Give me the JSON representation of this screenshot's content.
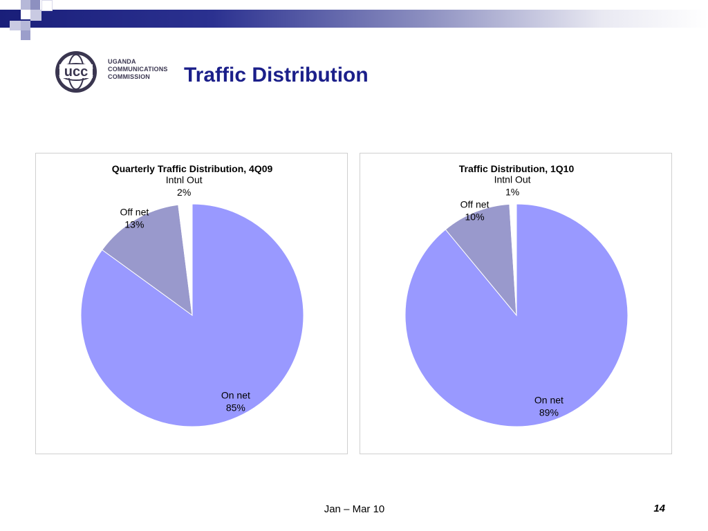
{
  "slide": {
    "title": "Traffic Distribution",
    "logo": {
      "line1": "UGANDA",
      "line2": "COMMUNICATIONS",
      "line3": "COMMISSION",
      "mark": "ucc"
    },
    "footer": "Jan – Mar 10",
    "page_number": "14"
  },
  "colors": {
    "on_net": "#9999ff",
    "off_net": "#9999cc",
    "intnl_out": "#ffffff",
    "title": "#1b1f8a"
  },
  "chart_data": [
    {
      "type": "pie",
      "title": "Quarterly Traffic Distribution, 4Q09",
      "slices": [
        {
          "label": "On net",
          "value": 85,
          "value_label": "85%",
          "color": "#9999ff"
        },
        {
          "label": "Off net",
          "value": 13,
          "value_label": "13%",
          "color": "#9999cc"
        },
        {
          "label": "Intnl Out",
          "value": 2,
          "value_label": "2%",
          "color": "#ffffff"
        }
      ]
    },
    {
      "type": "pie",
      "title": "Traffic Distribution, 1Q10",
      "slices": [
        {
          "label": "On net",
          "value": 89,
          "value_label": "89%",
          "color": "#9999ff"
        },
        {
          "label": "Off net",
          "value": 10,
          "value_label": "10%",
          "color": "#9999cc"
        },
        {
          "label": "Intnl Out",
          "value": 1,
          "value_label": "1%",
          "color": "#ffffff"
        }
      ]
    }
  ]
}
